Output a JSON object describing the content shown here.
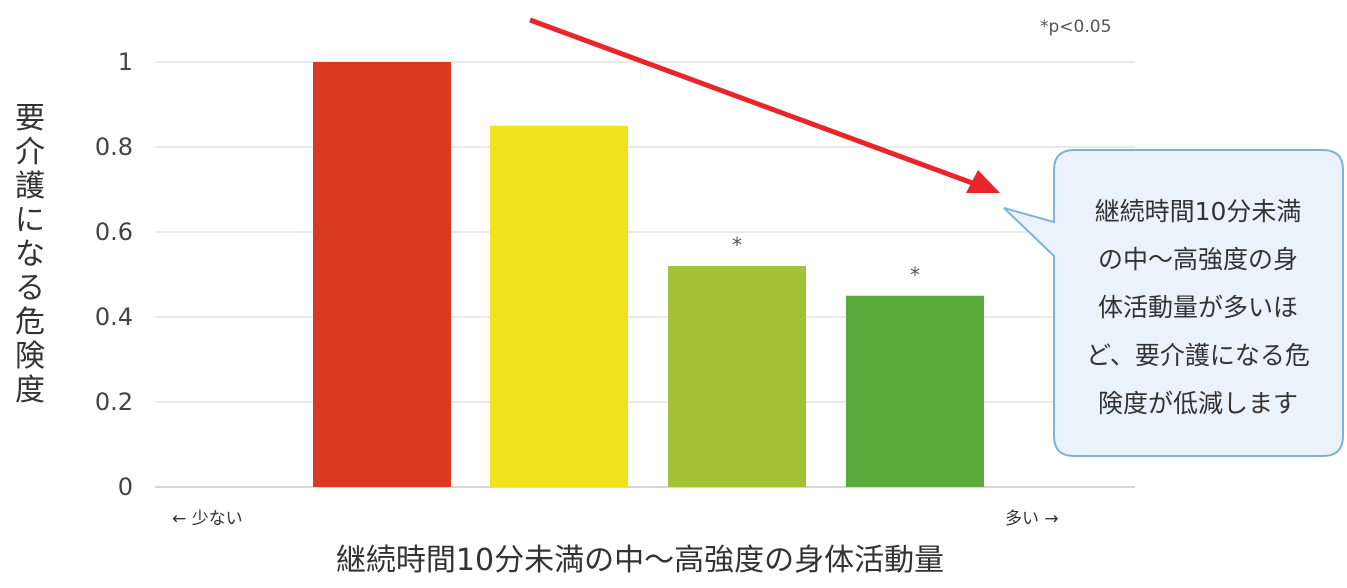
{
  "chart_data": {
    "type": "bar",
    "categories": [
      "",
      "",
      "",
      ""
    ],
    "values": [
      1.0,
      0.85,
      0.52,
      0.45
    ],
    "significant": [
      false,
      false,
      true,
      true
    ],
    "colors": [
      "#d9391e",
      "#f0e31e",
      "#a3c238",
      "#5aaa3c"
    ],
    "ylabel": "要介護になる危険度",
    "xlabel": "継続時間10分未満の中〜高強度の身体活動量",
    "ylim": [
      0,
      1
    ],
    "yticks": [
      "0",
      "0.2",
      "0.4",
      "0.6",
      "0.8",
      "1"
    ],
    "grid": true,
    "significance_mark": "*",
    "significance_note": "*p<0.05",
    "axis_low_label": "← 少ない",
    "axis_high_label": "多い →",
    "trend_arrow_color": "#e8262a",
    "callout_lines": [
      "継続時間10分未満",
      "の中〜高強度の身",
      "体活動量が多いほ",
      "ど、要介護になる危",
      "険度が低減します"
    ],
    "callout_border_color": "#7fb2d8",
    "callout_fill_color": "#eaf3fb"
  }
}
